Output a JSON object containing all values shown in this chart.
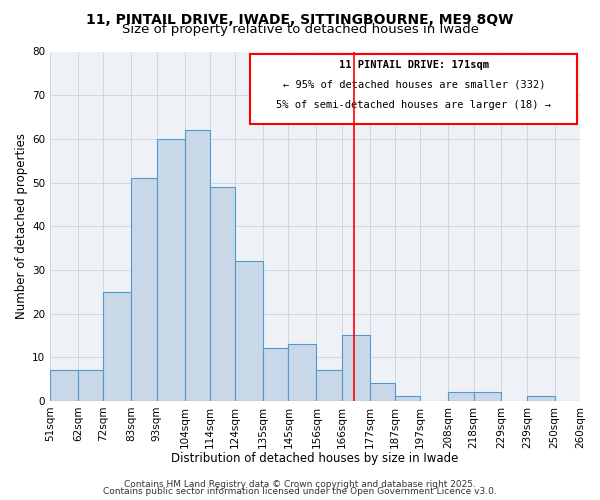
{
  "title_line1": "11, PINTAIL DRIVE, IWADE, SITTINGBOURNE, ME9 8QW",
  "title_line2": "Size of property relative to detached houses in Iwade",
  "xlabel": "Distribution of detached houses by size in Iwade",
  "ylabel": "Number of detached properties",
  "bar_edges": [
    51,
    62,
    72,
    83,
    93,
    104,
    114,
    124,
    135,
    145,
    156,
    166,
    177,
    187,
    197,
    208,
    218,
    229,
    239,
    250,
    260
  ],
  "bar_heights": [
    7,
    7,
    25,
    51,
    60,
    62,
    49,
    32,
    12,
    13,
    7,
    15,
    4,
    1,
    0,
    2,
    2,
    0,
    1,
    0
  ],
  "bar_color": "#c8d8e8",
  "bar_edge_color": "#5599cc",
  "bar_edge_width": 0.8,
  "ref_line_x": 171,
  "ref_line_color": "red",
  "ylim": [
    0,
    80
  ],
  "yticks": [
    0,
    10,
    20,
    30,
    40,
    50,
    60,
    70,
    80
  ],
  "xtick_labels": [
    "51sqm",
    "62sqm",
    "72sqm",
    "83sqm",
    "93sqm",
    "104sqm",
    "114sqm",
    "124sqm",
    "135sqm",
    "145sqm",
    "156sqm",
    "166sqm",
    "177sqm",
    "187sqm",
    "197sqm",
    "208sqm",
    "218sqm",
    "229sqm",
    "239sqm",
    "250sqm",
    "260sqm"
  ],
  "annotation_title": "11 PINTAIL DRIVE: 171sqm",
  "annotation_line2": "← 95% of detached houses are smaller (332)",
  "annotation_line3": "5% of semi-detached houses are larger (18) →",
  "footer_line1": "Contains HM Land Registry data © Crown copyright and database right 2025.",
  "footer_line2": "Contains public sector information licensed under the Open Government Licence v3.0.",
  "bg_color": "#eef2f7",
  "grid_color": "#cdd8e5",
  "title_fontsize": 10,
  "subtitle_fontsize": 9.5,
  "axis_label_fontsize": 8.5,
  "tick_fontsize": 7.5,
  "footer_fontsize": 6.5,
  "ann_fontsize": 7.5
}
